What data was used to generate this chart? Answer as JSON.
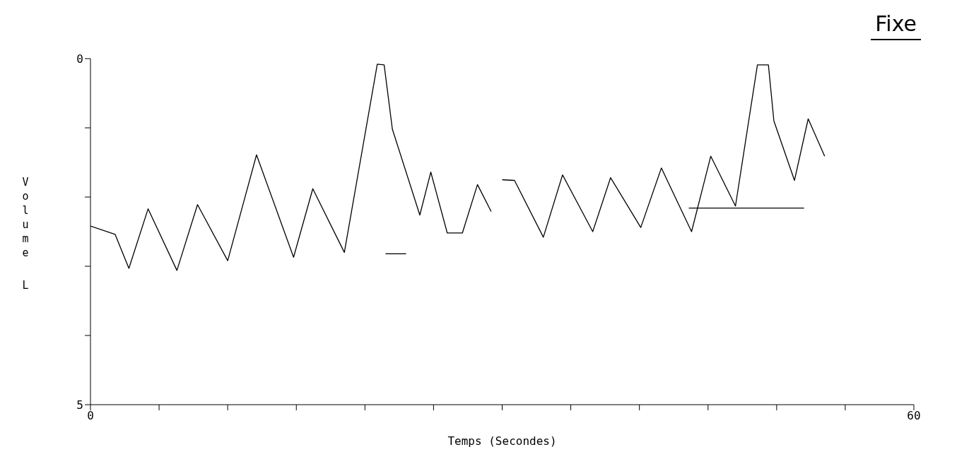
{
  "chart_data": {
    "type": "line",
    "title": "Fixe",
    "xlabel": "Temps (Secondes)",
    "ylabel": "Volume L",
    "xlim": [
      0,
      60
    ],
    "xticks": [
      0,
      {
        "value": 5,
        "label": null
      },
      {
        "value": 10,
        "label": null
      },
      {
        "value": 15,
        "label": null
      },
      {
        "value": 20,
        "label": null
      },
      {
        "value": 25,
        "label": null
      },
      {
        "value": 30,
        "label": null
      },
      {
        "value": 35,
        "label": null
      },
      {
        "value": 40,
        "label": null
      },
      {
        "value": 45,
        "label": null
      },
      {
        "value": 50,
        "label": null
      },
      {
        "value": 55,
        "label": null
      },
      60
    ],
    "ylim": [
      5,
      0
    ],
    "yticks": [
      0,
      {
        "value": 1,
        "label": null
      },
      {
        "value": 2,
        "label": null
      },
      {
        "value": 3,
        "label": null
      },
      {
        "value": 4,
        "label": null
      },
      5
    ],
    "grid": false,
    "marker": "none",
    "line_style": "solid",
    "series": [
      {
        "color": "#000000",
        "x": [
          0,
          1.8,
          2.8,
          4.2,
          6.3,
          7.8,
          10.0,
          12.1,
          14.8,
          16.2,
          18.5,
          20.9,
          21.4,
          22.0,
          24.0,
          24.8,
          26.0,
          27.1,
          28.2,
          29.2,
          29.6,
          30.0,
          30.9,
          33.0,
          34.4,
          36.6,
          37.9,
          40.1,
          41.6,
          43.8,
          45.2,
          47.0,
          48.6,
          49.4,
          49.8,
          51.3,
          52.3,
          53.5
        ],
        "values": [
          2.42,
          2.54,
          3.03,
          2.17,
          3.06,
          2.11,
          2.92,
          1.39,
          2.87,
          1.88,
          2.8,
          0.08,
          0.09,
          1.02,
          2.26,
          1.64,
          2.52,
          2.52,
          1.82,
          2.21,
          null,
          1.75,
          1.76,
          2.58,
          1.68,
          2.5,
          1.72,
          2.44,
          1.58,
          2.5,
          1.41,
          2.13,
          0.09,
          0.09,
          0.9,
          1.76,
          0.87,
          1.41
        ]
      },
      {
        "color": "#000000",
        "x": [
          43.6,
          52.0
        ],
        "values": [
          2.16,
          2.16
        ]
      },
      {
        "color": "#000000",
        "x": [
          21.5,
          23.0
        ],
        "values": [
          2.82,
          2.82
        ]
      }
    ]
  }
}
